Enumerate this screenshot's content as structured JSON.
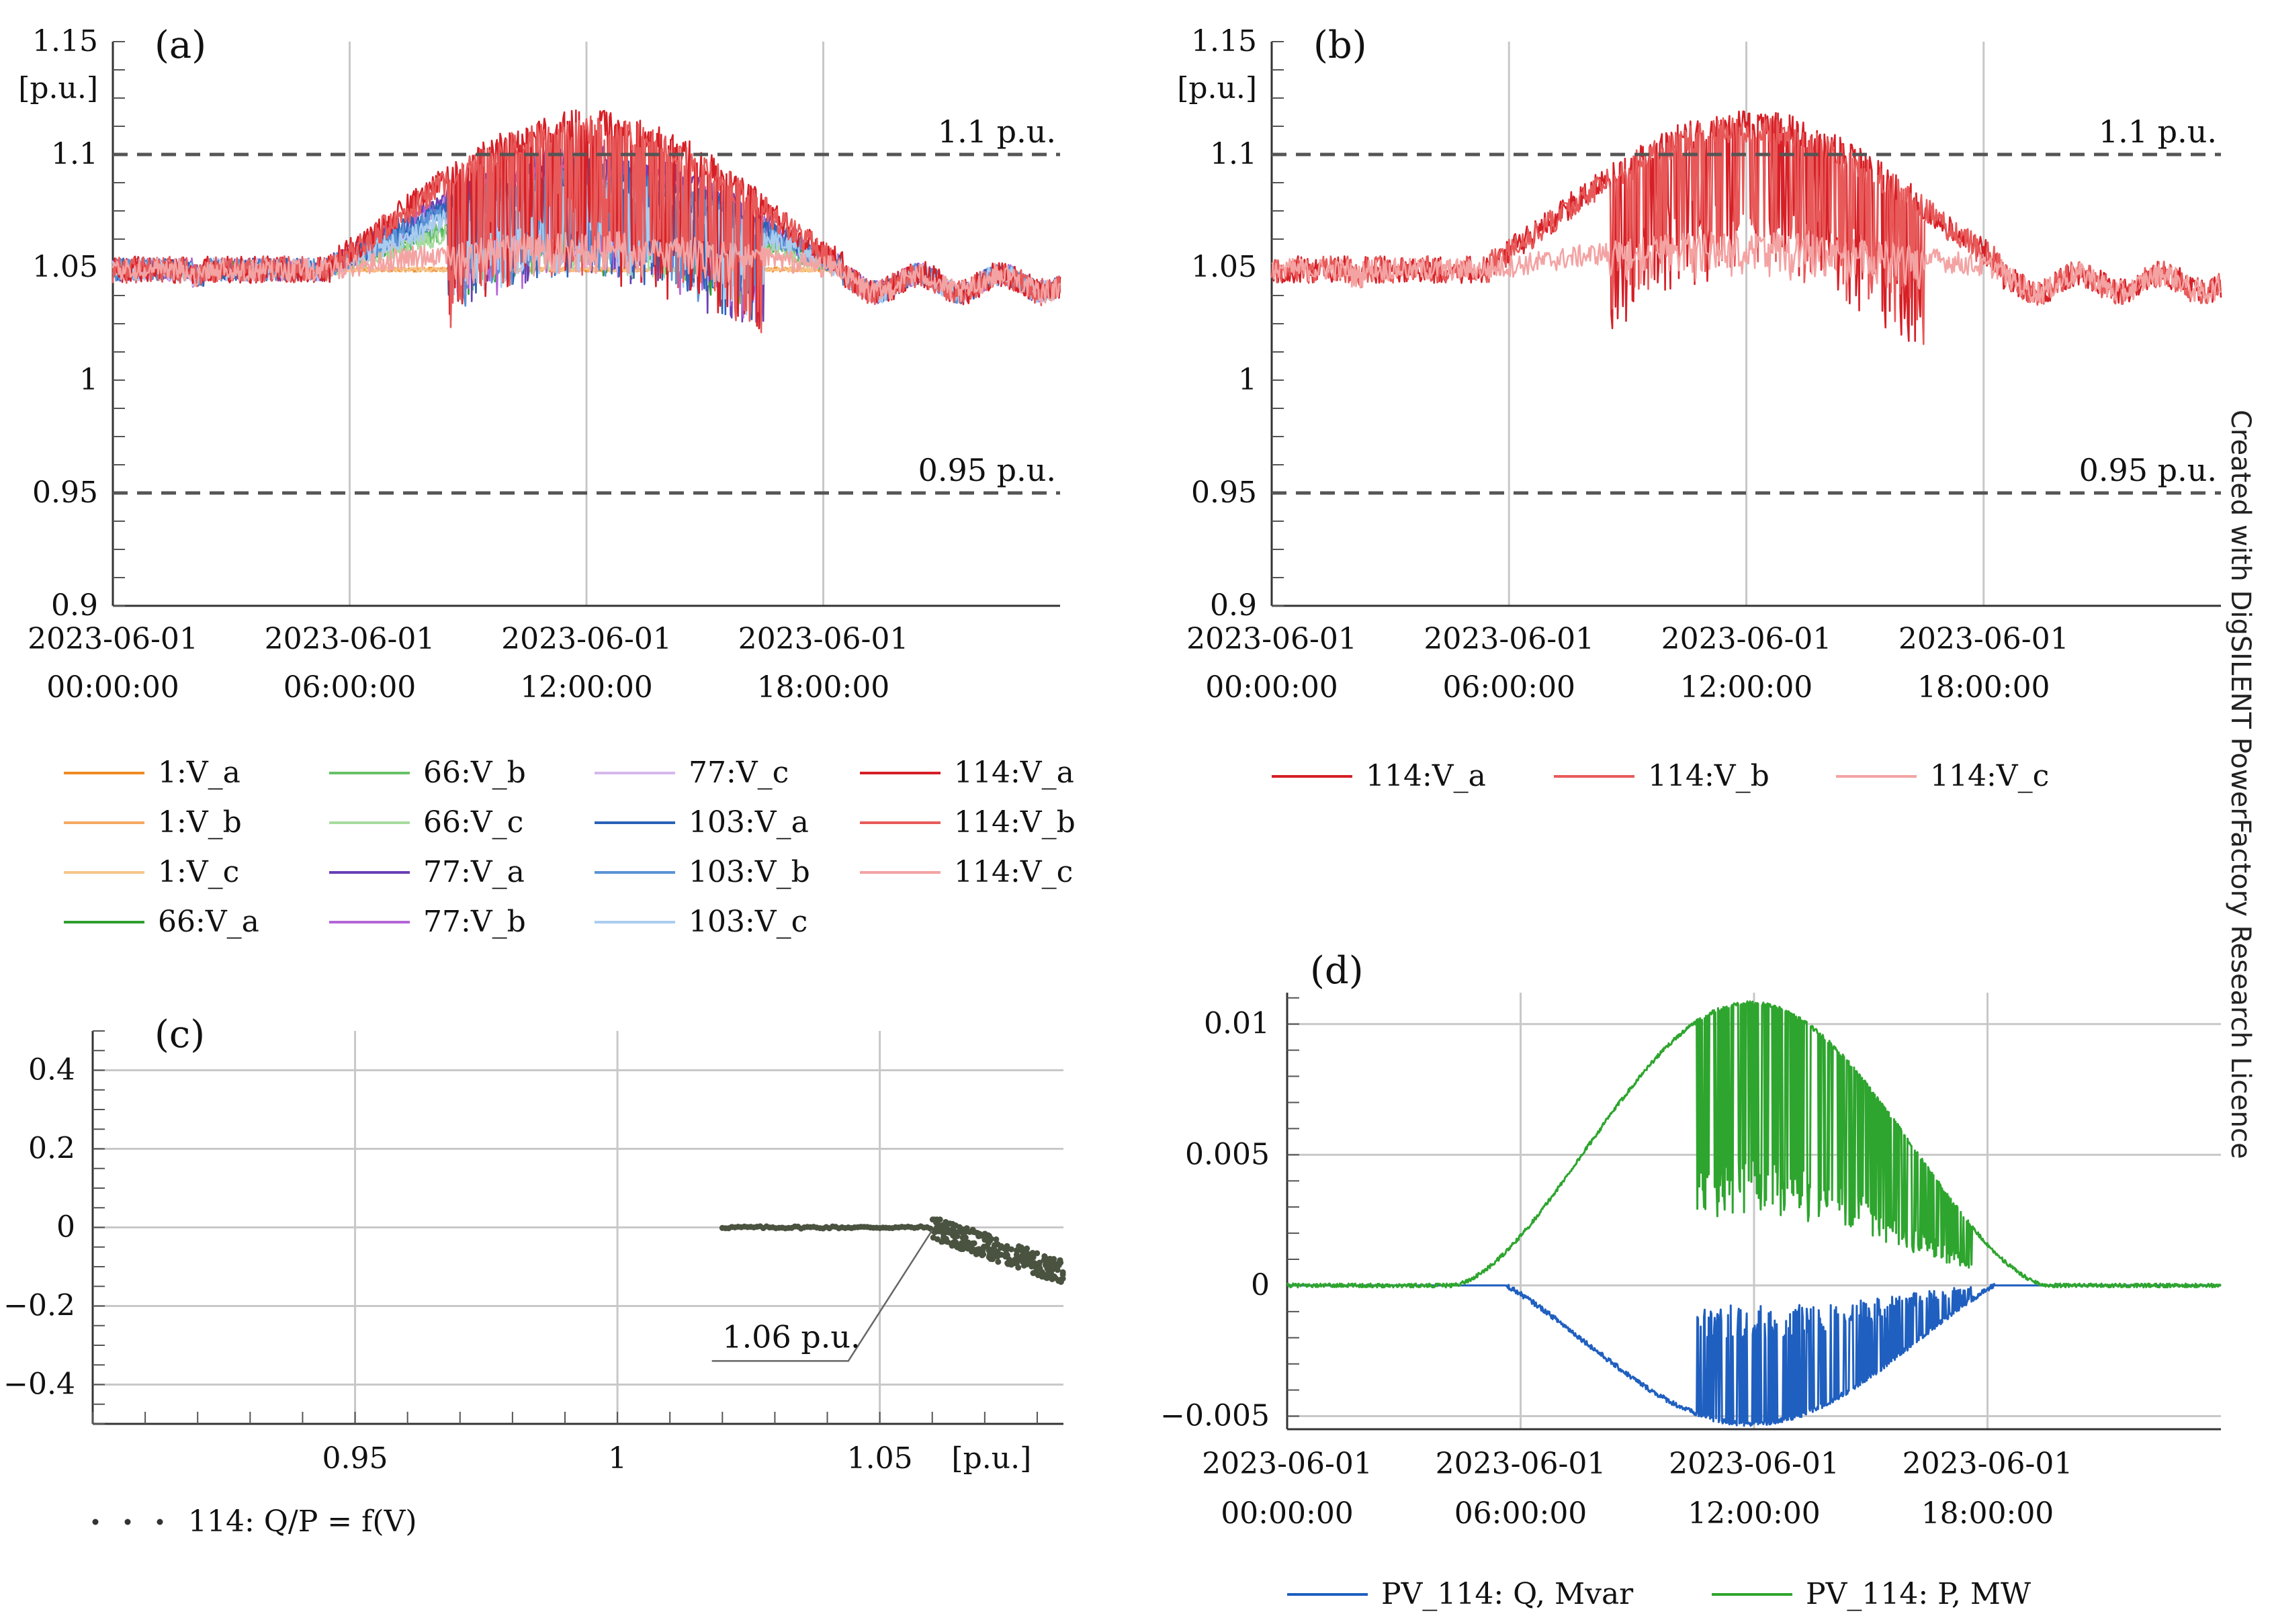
{
  "watermark": "Created with DigSILENT PowerFactory Research Licence",
  "chart_data": [
    {
      "id": "a",
      "type": "line",
      "panel_label": "(a)",
      "unit_label": "[p.u.]",
      "ylim": [
        0.9,
        1.15
      ],
      "yticks": [
        "0.9",
        "0.95",
        "1",
        "1.05",
        "1.1",
        "1.15"
      ],
      "xlim": [
        0,
        24
      ],
      "xticks": [
        {
          "h": 0,
          "l1": "2023-06-01",
          "l2": "00:00:00"
        },
        {
          "h": 6,
          "l1": "2023-06-01",
          "l2": "06:00:00"
        },
        {
          "h": 12,
          "l1": "2023-06-01",
          "l2": "12:00:00"
        },
        {
          "h": 18,
          "l1": "2023-06-01",
          "l2": "18:00:00"
        }
      ],
      "grid": "vertical",
      "refs": [
        {
          "y": 1.1,
          "label": "1.1 p.u."
        },
        {
          "y": 0.95,
          "label": "0.95 p.u."
        }
      ],
      "legend_position": "bottom",
      "series": [
        {
          "name": "1:V_a",
          "color": "#f08a24",
          "peak": 0.0,
          "noise": 0.001
        },
        {
          "name": "1:V_b",
          "color": "#f5a860",
          "peak": 0.0,
          "noise": 0.001
        },
        {
          "name": "1:V_c",
          "color": "#f7c68a",
          "peak": 0.0,
          "noise": 0.001
        },
        {
          "name": "66:V_a",
          "color": "#2f9e2f",
          "peak": 0.03,
          "noise": 0.004
        },
        {
          "name": "66:V_b",
          "color": "#66c266",
          "peak": 0.028,
          "noise": 0.004
        },
        {
          "name": "66:V_c",
          "color": "#a8dba0",
          "peak": 0.025,
          "noise": 0.004
        },
        {
          "name": "77:V_a",
          "color": "#6a3fb5",
          "peak": 0.05,
          "noise": 0.005
        },
        {
          "name": "77:V_b",
          "color": "#b465d8",
          "peak": 0.045,
          "noise": 0.005
        },
        {
          "name": "77:V_c",
          "color": "#d6b8ec",
          "peak": 0.04,
          "noise": 0.005
        },
        {
          "name": "103:V_a",
          "color": "#2b62b8",
          "peak": 0.045,
          "noise": 0.005
        },
        {
          "name": "103:V_b",
          "color": "#5a93d6",
          "peak": 0.04,
          "noise": 0.005
        },
        {
          "name": "103:V_c",
          "color": "#a9cdef",
          "peak": 0.035,
          "noise": 0.005
        },
        {
          "name": "114:V_a",
          "color": "#d61f26",
          "peak": 0.065,
          "noise": 0.006
        },
        {
          "name": "114:V_b",
          "color": "#e85a5a",
          "peak": 0.062,
          "noise": 0.006
        },
        {
          "name": "114:V_c",
          "color": "#f4a3a3",
          "peak": 0.012,
          "noise": 0.005
        }
      ]
    },
    {
      "id": "b",
      "type": "line",
      "panel_label": "(b)",
      "unit_label": "[p.u.]",
      "ylim": [
        0.9,
        1.15
      ],
      "yticks": [
        "0.9",
        "0.95",
        "1",
        "1.05",
        "1.1",
        "1.15"
      ],
      "xlim": [
        0,
        24
      ],
      "xticks": [
        {
          "h": 0,
          "l1": "2023-06-01",
          "l2": "00:00:00"
        },
        {
          "h": 6,
          "l1": "2023-06-01",
          "l2": "06:00:00"
        },
        {
          "h": 12,
          "l1": "2023-06-01",
          "l2": "12:00:00"
        },
        {
          "h": 18,
          "l1": "2023-06-01",
          "l2": "18:00:00"
        }
      ],
      "grid": "vertical",
      "refs": [
        {
          "y": 1.1,
          "label": "1.1 p.u."
        },
        {
          "y": 0.95,
          "label": "0.95 p.u."
        }
      ],
      "legend_position": "bottom",
      "series": [
        {
          "name": "114:V_a",
          "color": "#d61f26",
          "peak": 0.065,
          "noise": 0.006
        },
        {
          "name": "114:V_b",
          "color": "#e85a5a",
          "peak": 0.062,
          "noise": 0.006
        },
        {
          "name": "114:V_c",
          "color": "#f4a3a3",
          "peak": 0.012,
          "noise": 0.005
        }
      ]
    },
    {
      "id": "c",
      "type": "scatter",
      "panel_label": "(c)",
      "xlabel": "[p.u.]",
      "xlim": [
        0.9,
        1.085
      ],
      "ylim": [
        -0.5,
        0.5
      ],
      "xticks": [
        "0.95",
        "1",
        "1.05"
      ],
      "yticks": [
        "-0.4",
        "-0.2",
        "0",
        "0.2",
        "0.4"
      ],
      "grid": "both",
      "annotation": {
        "label": "1.06 p.u.",
        "x": 1.06,
        "y": 0
      },
      "curve": {
        "v_knee": 1.06,
        "slope": -4.6,
        "q_min": -0.45,
        "v_start": 1.02,
        "v_end": 1.085
      },
      "legend_position": "bottom",
      "series": [
        {
          "name": "114: Q/P = f(V)",
          "color": "#4a5240"
        }
      ]
    },
    {
      "id": "d",
      "type": "area",
      "panel_label": "(d)",
      "ylim": [
        -0.0055,
        0.0112
      ],
      "yticks": [
        "-0.005",
        "0",
        "0.005",
        "0.01"
      ],
      "xlim": [
        0,
        24
      ],
      "xticks": [
        {
          "h": 0,
          "l1": "2023-06-01",
          "l2": "00:00:00"
        },
        {
          "h": 6,
          "l1": "2023-06-01",
          "l2": "06:00:00"
        },
        {
          "h": 12,
          "l1": "2023-06-01",
          "l2": "12:00:00"
        },
        {
          "h": 18,
          "l1": "2023-06-01",
          "l2": "18:00:00"
        }
      ],
      "grid": "both",
      "legend_position": "bottom",
      "series": [
        {
          "name": "PV_114: Q, Mvar",
          "color": "#1f5fbf",
          "peak": -0.0053
        },
        {
          "name": "PV_114: P, MW",
          "color": "#2ea52e",
          "peak": 0.0108
        }
      ]
    }
  ]
}
